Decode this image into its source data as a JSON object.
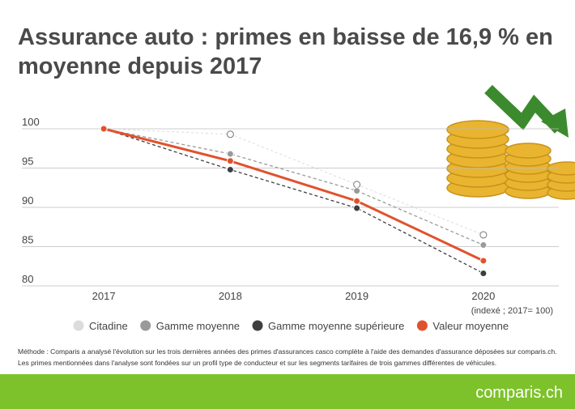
{
  "chart_data": {
    "type": "line",
    "title": "Assurance auto : primes en baisse de 16,9 % en moyenne depuis 2017",
    "categories": [
      "2017",
      "2018",
      "2019",
      "2020"
    ],
    "series": [
      {
        "name": "Citadine",
        "color": "#dcdcdc",
        "values": [
          100,
          99.3,
          92.9,
          86.5
        ]
      },
      {
        "name": "Gamme moyenne",
        "color": "#9a9a9a",
        "values": [
          100,
          96.8,
          92.1,
          85.2
        ]
      },
      {
        "name": "Gamme moyenne supérieure",
        "color": "#3e3e3e",
        "values": [
          100,
          94.8,
          89.9,
          81.6
        ]
      },
      {
        "name": "Valeur moyenne",
        "color": "#e0522d",
        "values": [
          100,
          95.9,
          90.8,
          83.2
        ]
      }
    ],
    "ylim": [
      80,
      100
    ],
    "yticks": [
      80,
      85,
      90,
      95,
      100
    ],
    "grid": true,
    "note": "(indexé ; 2017= 100)",
    "method": [
      "Méthode : Comparis a analysé l'évolution sur les trois dernières années des primes d'assurances casco complète à l'aide des demandes d'assurance déposées sur comparis.ch.",
      "Les primes mentionnées dans l'analyse sont fondées sur un profil type de conducteur et sur les segments tarifaires de trois gammes différentes de véhicules."
    ],
    "brand": "comparis.ch"
  }
}
